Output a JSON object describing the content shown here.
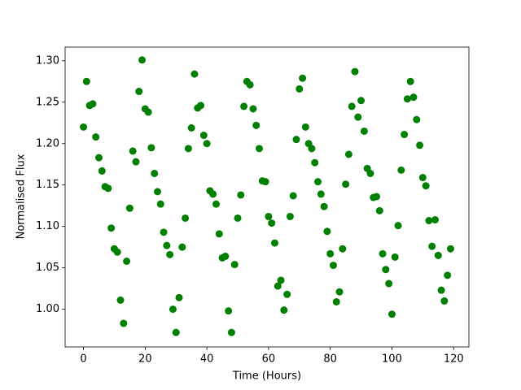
{
  "chart_data": {
    "type": "scatter",
    "x_label": "Time (Hours)",
    "y_label": "Normalised Flux",
    "xlim": [
      -5.95,
      124.95
    ],
    "ylim": [
      0.9545,
      1.3165
    ],
    "xticks": [
      0,
      20,
      40,
      60,
      80,
      100,
      120
    ],
    "yticks": [
      {
        "value": 1.0,
        "label": "1.00"
      },
      1.05,
      {
        "value": 1.1,
        "label": "1.10"
      },
      1.15,
      {
        "value": 1.2,
        "label": "1.20"
      },
      1.25,
      {
        "value": 1.3,
        "label": "1.30"
      }
    ],
    "series": [
      {
        "color": "#008000",
        "x": [
          0,
          1,
          2,
          3,
          4,
          5,
          6,
          7,
          8,
          9,
          10,
          11,
          12,
          13,
          14,
          15,
          16,
          17,
          18,
          19,
          20,
          21,
          22,
          23,
          24,
          25,
          26,
          27,
          28,
          29,
          30,
          31,
          32,
          33,
          34,
          35,
          36,
          37,
          38,
          39,
          40,
          41,
          42,
          43,
          44,
          45,
          46,
          47,
          48,
          49,
          50,
          51,
          52,
          53,
          54,
          55,
          56,
          57,
          58,
          59,
          60,
          61,
          62,
          63,
          64,
          65,
          66,
          67,
          68,
          69,
          70,
          71,
          72,
          73,
          74,
          75,
          76,
          77,
          78,
          79,
          80,
          81,
          82,
          83,
          84,
          85,
          86,
          87,
          88,
          89,
          90,
          91,
          92,
          93,
          94,
          95,
          96,
          97,
          98,
          99,
          100,
          101,
          102,
          103,
          104,
          105,
          106,
          107,
          108,
          109,
          110,
          111,
          112,
          113,
          114,
          115,
          116,
          117,
          118,
          119
        ],
        "values": [
          1.22,
          1.275,
          1.246,
          1.248,
          1.208,
          1.183,
          1.167,
          1.148,
          1.146,
          1.098,
          1.073,
          1.069,
          1.011,
          0.983,
          1.058,
          1.122,
          1.191,
          1.178,
          1.263,
          1.301,
          1.242,
          1.238,
          1.195,
          1.164,
          1.142,
          1.127,
          1.093,
          1.077,
          1.066,
          1.0,
          0.972,
          1.014,
          1.075,
          1.11,
          1.194,
          1.219,
          1.284,
          1.243,
          1.246,
          1.21,
          1.2,
          1.143,
          1.139,
          1.127,
          1.091,
          1.062,
          1.064,
          0.998,
          0.972,
          1.054,
          1.11,
          1.138,
          1.245,
          1.275,
          1.271,
          1.242,
          1.222,
          1.194,
          1.155,
          1.154,
          1.112,
          1.104,
          1.08,
          1.028,
          1.035,
          0.999,
          1.018,
          1.112,
          1.137,
          1.205,
          1.266,
          1.279,
          1.22,
          1.2,
          1.194,
          1.177,
          1.154,
          1.139,
          1.124,
          1.094,
          1.067,
          1.053,
          1.009,
          1.021,
          1.073,
          1.151,
          1.187,
          1.245,
          1.287,
          1.232,
          1.252,
          1.215,
          1.17,
          1.164,
          1.135,
          1.136,
          1.119,
          1.067,
          1.048,
          1.031,
          0.994,
          1.063,
          1.101,
          1.168,
          1.211,
          1.254,
          1.275,
          1.256,
          1.229,
          1.198,
          1.159,
          1.149,
          1.107,
          1.076,
          1.108,
          1.065,
          1.023,
          1.01,
          1.041,
          1.073
        ]
      }
    ]
  }
}
